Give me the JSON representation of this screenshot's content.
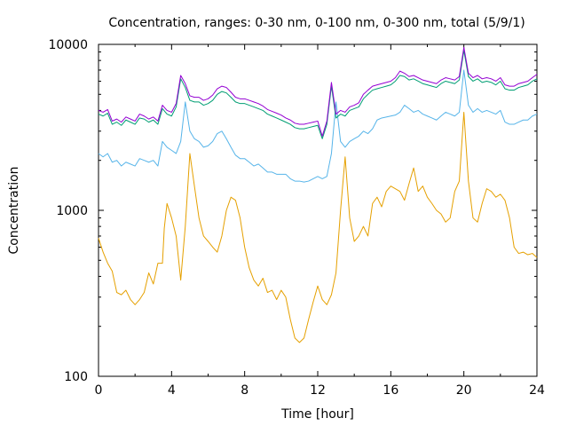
{
  "chart_data": {
    "type": "line",
    "title": "Concentration, ranges: 0-30 nm, 0-100 nm, 0-300 nm, total (5/9/1)",
    "xlabel": "Time [hour]",
    "ylabel": "Concentration",
    "xlim": [
      0,
      24
    ],
    "ylim": [
      100,
      10000
    ],
    "yscale": "log",
    "x_ticks": [
      0,
      4,
      8,
      12,
      16,
      20,
      24
    ],
    "y_ticks": [
      100,
      1000,
      10000
    ],
    "grid": false,
    "legend": "none",
    "series": [
      {
        "color": "#e5a000",
        "x": [
          0,
          0.25,
          0.5,
          0.75,
          1,
          1.25,
          1.5,
          1.75,
          2,
          2.25,
          2.5,
          2.75,
          3,
          3.25,
          3.5,
          3.6,
          3.75,
          4,
          4.25,
          4.5,
          4.75,
          5,
          5.25,
          5.5,
          5.75,
          6,
          6.25,
          6.5,
          6.75,
          7,
          7.25,
          7.5,
          7.75,
          8,
          8.25,
          8.5,
          8.75,
          9,
          9.25,
          9.5,
          9.75,
          10,
          10.25,
          10.5,
          10.75,
          11,
          11.25,
          11.5,
          11.75,
          12,
          12.25,
          12.5,
          12.75,
          13,
          13.25,
          13.5,
          13.75,
          14,
          14.25,
          14.5,
          14.75,
          15,
          15.25,
          15.5,
          15.75,
          16,
          16.25,
          16.5,
          16.75,
          17,
          17.25,
          17.5,
          17.75,
          18,
          18.25,
          18.5,
          18.75,
          19,
          19.25,
          19.5,
          19.75,
          20,
          20.25,
          20.5,
          20.75,
          21,
          21.25,
          21.5,
          21.75,
          22,
          22.25,
          22.5,
          22.75,
          23,
          23.25,
          23.5,
          23.75,
          24
        ],
        "values": [
          680,
          560,
          480,
          430,
          320,
          310,
          330,
          290,
          270,
          290,
          320,
          420,
          360,
          480,
          480,
          780,
          1100,
          900,
          700,
          380,
          800,
          2200,
          1400,
          900,
          700,
          650,
          600,
          560,
          700,
          1000,
          1200,
          1150,
          900,
          600,
          450,
          380,
          350,
          390,
          320,
          330,
          290,
          330,
          300,
          220,
          170,
          160,
          170,
          220,
          280,
          350,
          290,
          270,
          310,
          420,
          1000,
          2100,
          900,
          650,
          700,
          800,
          700,
          1100,
          1200,
          1050,
          1300,
          1400,
          1350,
          1300,
          1150,
          1450,
          1800,
          1300,
          1400,
          1200,
          1100,
          1000,
          950,
          850,
          900,
          1300,
          1500,
          3900,
          1500,
          900,
          850,
          1100,
          1350,
          1300,
          1200,
          1250,
          1150,
          900,
          600,
          550,
          560,
          540,
          550,
          520
        ]
      },
      {
        "color": "#56b4e9",
        "x": [
          0,
          0.25,
          0.5,
          0.75,
          1,
          1.25,
          1.5,
          1.75,
          2,
          2.25,
          2.5,
          2.75,
          3,
          3.25,
          3.5,
          3.75,
          4,
          4.25,
          4.5,
          4.75,
          5,
          5.25,
          5.5,
          5.75,
          6,
          6.25,
          6.5,
          6.75,
          7,
          7.25,
          7.5,
          7.75,
          8,
          8.25,
          8.5,
          8.75,
          9,
          9.25,
          9.5,
          9.75,
          10,
          10.25,
          10.5,
          10.75,
          11,
          11.25,
          11.5,
          11.75,
          12,
          12.25,
          12.5,
          12.75,
          13,
          13.25,
          13.5,
          13.75,
          14,
          14.25,
          14.5,
          14.75,
          15,
          15.25,
          15.5,
          15.75,
          16,
          16.25,
          16.5,
          16.75,
          17,
          17.25,
          17.5,
          17.75,
          18,
          18.25,
          18.5,
          18.75,
          19,
          19.25,
          19.5,
          19.75,
          20,
          20.25,
          20.5,
          20.75,
          21,
          21.25,
          21.5,
          21.75,
          22,
          22.25,
          22.5,
          22.75,
          23,
          23.25,
          23.5,
          23.75,
          24
        ],
        "values": [
          2200,
          2100,
          2200,
          1950,
          2000,
          1850,
          1950,
          1900,
          1850,
          2050,
          2000,
          1950,
          2000,
          1850,
          2600,
          2400,
          2300,
          2200,
          2600,
          4500,
          3000,
          2700,
          2600,
          2400,
          2450,
          2600,
          2900,
          3000,
          2700,
          2400,
          2150,
          2050,
          2050,
          1950,
          1850,
          1900,
          1800,
          1700,
          1700,
          1650,
          1650,
          1650,
          1550,
          1500,
          1500,
          1480,
          1500,
          1550,
          1600,
          1550,
          1600,
          2200,
          4500,
          2600,
          2400,
          2600,
          2700,
          2800,
          3000,
          2900,
          3100,
          3500,
          3600,
          3650,
          3700,
          3750,
          3900,
          4300,
          4100,
          3900,
          4000,
          3800,
          3700,
          3600,
          3500,
          3700,
          3900,
          3800,
          3700,
          3900,
          7000,
          4300,
          3900,
          4100,
          3900,
          4000,
          3900,
          3800,
          4000,
          3400,
          3300,
          3300,
          3400,
          3500,
          3500,
          3700,
          3800
        ]
      },
      {
        "color": "#009e73",
        "x": [
          0,
          0.25,
          0.5,
          0.75,
          1,
          1.25,
          1.5,
          1.75,
          2,
          2.25,
          2.5,
          2.75,
          3,
          3.25,
          3.5,
          3.75,
          4,
          4.25,
          4.5,
          4.75,
          5,
          5.25,
          5.5,
          5.75,
          6,
          6.25,
          6.5,
          6.75,
          7,
          7.25,
          7.5,
          7.75,
          8,
          8.25,
          8.5,
          8.75,
          9,
          9.25,
          9.5,
          9.75,
          10,
          10.25,
          10.5,
          10.75,
          11,
          11.25,
          11.5,
          11.75,
          12,
          12.25,
          12.5,
          12.75,
          13,
          13.25,
          13.5,
          13.75,
          14,
          14.25,
          14.5,
          14.75,
          15,
          15.25,
          15.5,
          15.75,
          16,
          16.25,
          16.5,
          16.75,
          17,
          17.25,
          17.5,
          17.75,
          18,
          18.25,
          18.5,
          18.75,
          19,
          19.25,
          19.5,
          19.75,
          20,
          20.25,
          20.5,
          20.75,
          21,
          21.25,
          21.5,
          21.75,
          22,
          22.25,
          22.5,
          22.75,
          23,
          23.25,
          23.5,
          23.75,
          24
        ],
        "values": [
          3800,
          3700,
          3850,
          3300,
          3400,
          3250,
          3500,
          3400,
          3300,
          3600,
          3550,
          3400,
          3500,
          3300,
          4100,
          3800,
          3700,
          4200,
          6200,
          5500,
          4600,
          4500,
          4500,
          4300,
          4400,
          4600,
          5000,
          5200,
          5100,
          4800,
          4500,
          4400,
          4400,
          4300,
          4200,
          4100,
          4000,
          3800,
          3700,
          3600,
          3500,
          3400,
          3300,
          3150,
          3100,
          3100,
          3150,
          3200,
          3250,
          2700,
          3300,
          5600,
          3600,
          3800,
          3700,
          4000,
          4100,
          4200,
          4700,
          5000,
          5300,
          5400,
          5500,
          5600,
          5700,
          6000,
          6500,
          6400,
          6100,
          6200,
          6000,
          5800,
          5700,
          5600,
          5500,
          5800,
          6000,
          5900,
          5800,
          6100,
          9200,
          6400,
          6000,
          6200,
          5900,
          6000,
          5900,
          5700,
          6000,
          5400,
          5300,
          5300,
          5500,
          5600,
          5700,
          6000,
          6200
        ]
      },
      {
        "color": "#9400d3",
        "x": [
          0,
          0.25,
          0.5,
          0.75,
          1,
          1.25,
          1.5,
          1.75,
          2,
          2.25,
          2.5,
          2.75,
          3,
          3.25,
          3.5,
          3.75,
          4,
          4.25,
          4.5,
          4.75,
          5,
          5.25,
          5.5,
          5.75,
          6,
          6.25,
          6.5,
          6.75,
          7,
          7.25,
          7.5,
          7.75,
          8,
          8.25,
          8.5,
          8.75,
          9,
          9.25,
          9.5,
          9.75,
          10,
          10.25,
          10.5,
          10.75,
          11,
          11.25,
          11.5,
          11.75,
          12,
          12.25,
          12.5,
          12.75,
          13,
          13.25,
          13.5,
          13.75,
          14,
          14.25,
          14.5,
          14.75,
          15,
          15.25,
          15.5,
          15.75,
          16,
          16.25,
          16.5,
          16.75,
          17,
          17.25,
          17.5,
          17.75,
          18,
          18.25,
          18.5,
          18.75,
          19,
          19.25,
          19.5,
          19.75,
          20,
          20.25,
          20.5,
          20.75,
          21,
          21.25,
          21.5,
          21.75,
          22,
          22.25,
          22.5,
          22.75,
          23,
          23.25,
          23.5,
          23.75,
          24
        ],
        "values": [
          4000,
          3900,
          4050,
          3450,
          3550,
          3400,
          3650,
          3550,
          3450,
          3800,
          3700,
          3550,
          3650,
          3450,
          4300,
          4000,
          3900,
          4400,
          6500,
          5800,
          4900,
          4800,
          4800,
          4600,
          4700,
          4950,
          5400,
          5600,
          5500,
          5150,
          4800,
          4700,
          4700,
          4600,
          4500,
          4400,
          4250,
          4050,
          3950,
          3850,
          3750,
          3600,
          3500,
          3350,
          3300,
          3300,
          3350,
          3400,
          3450,
          2800,
          3450,
          5900,
          3800,
          4000,
          3900,
          4200,
          4300,
          4450,
          5000,
          5300,
          5600,
          5700,
          5800,
          5900,
          6000,
          6300,
          6900,
          6700,
          6400,
          6500,
          6300,
          6100,
          6000,
          5900,
          5800,
          6100,
          6300,
          6200,
          6100,
          6400,
          9600,
          6700,
          6300,
          6500,
          6200,
          6300,
          6200,
          6000,
          6300,
          5700,
          5600,
          5600,
          5800,
          5900,
          6000,
          6300,
          6600
        ]
      }
    ]
  }
}
